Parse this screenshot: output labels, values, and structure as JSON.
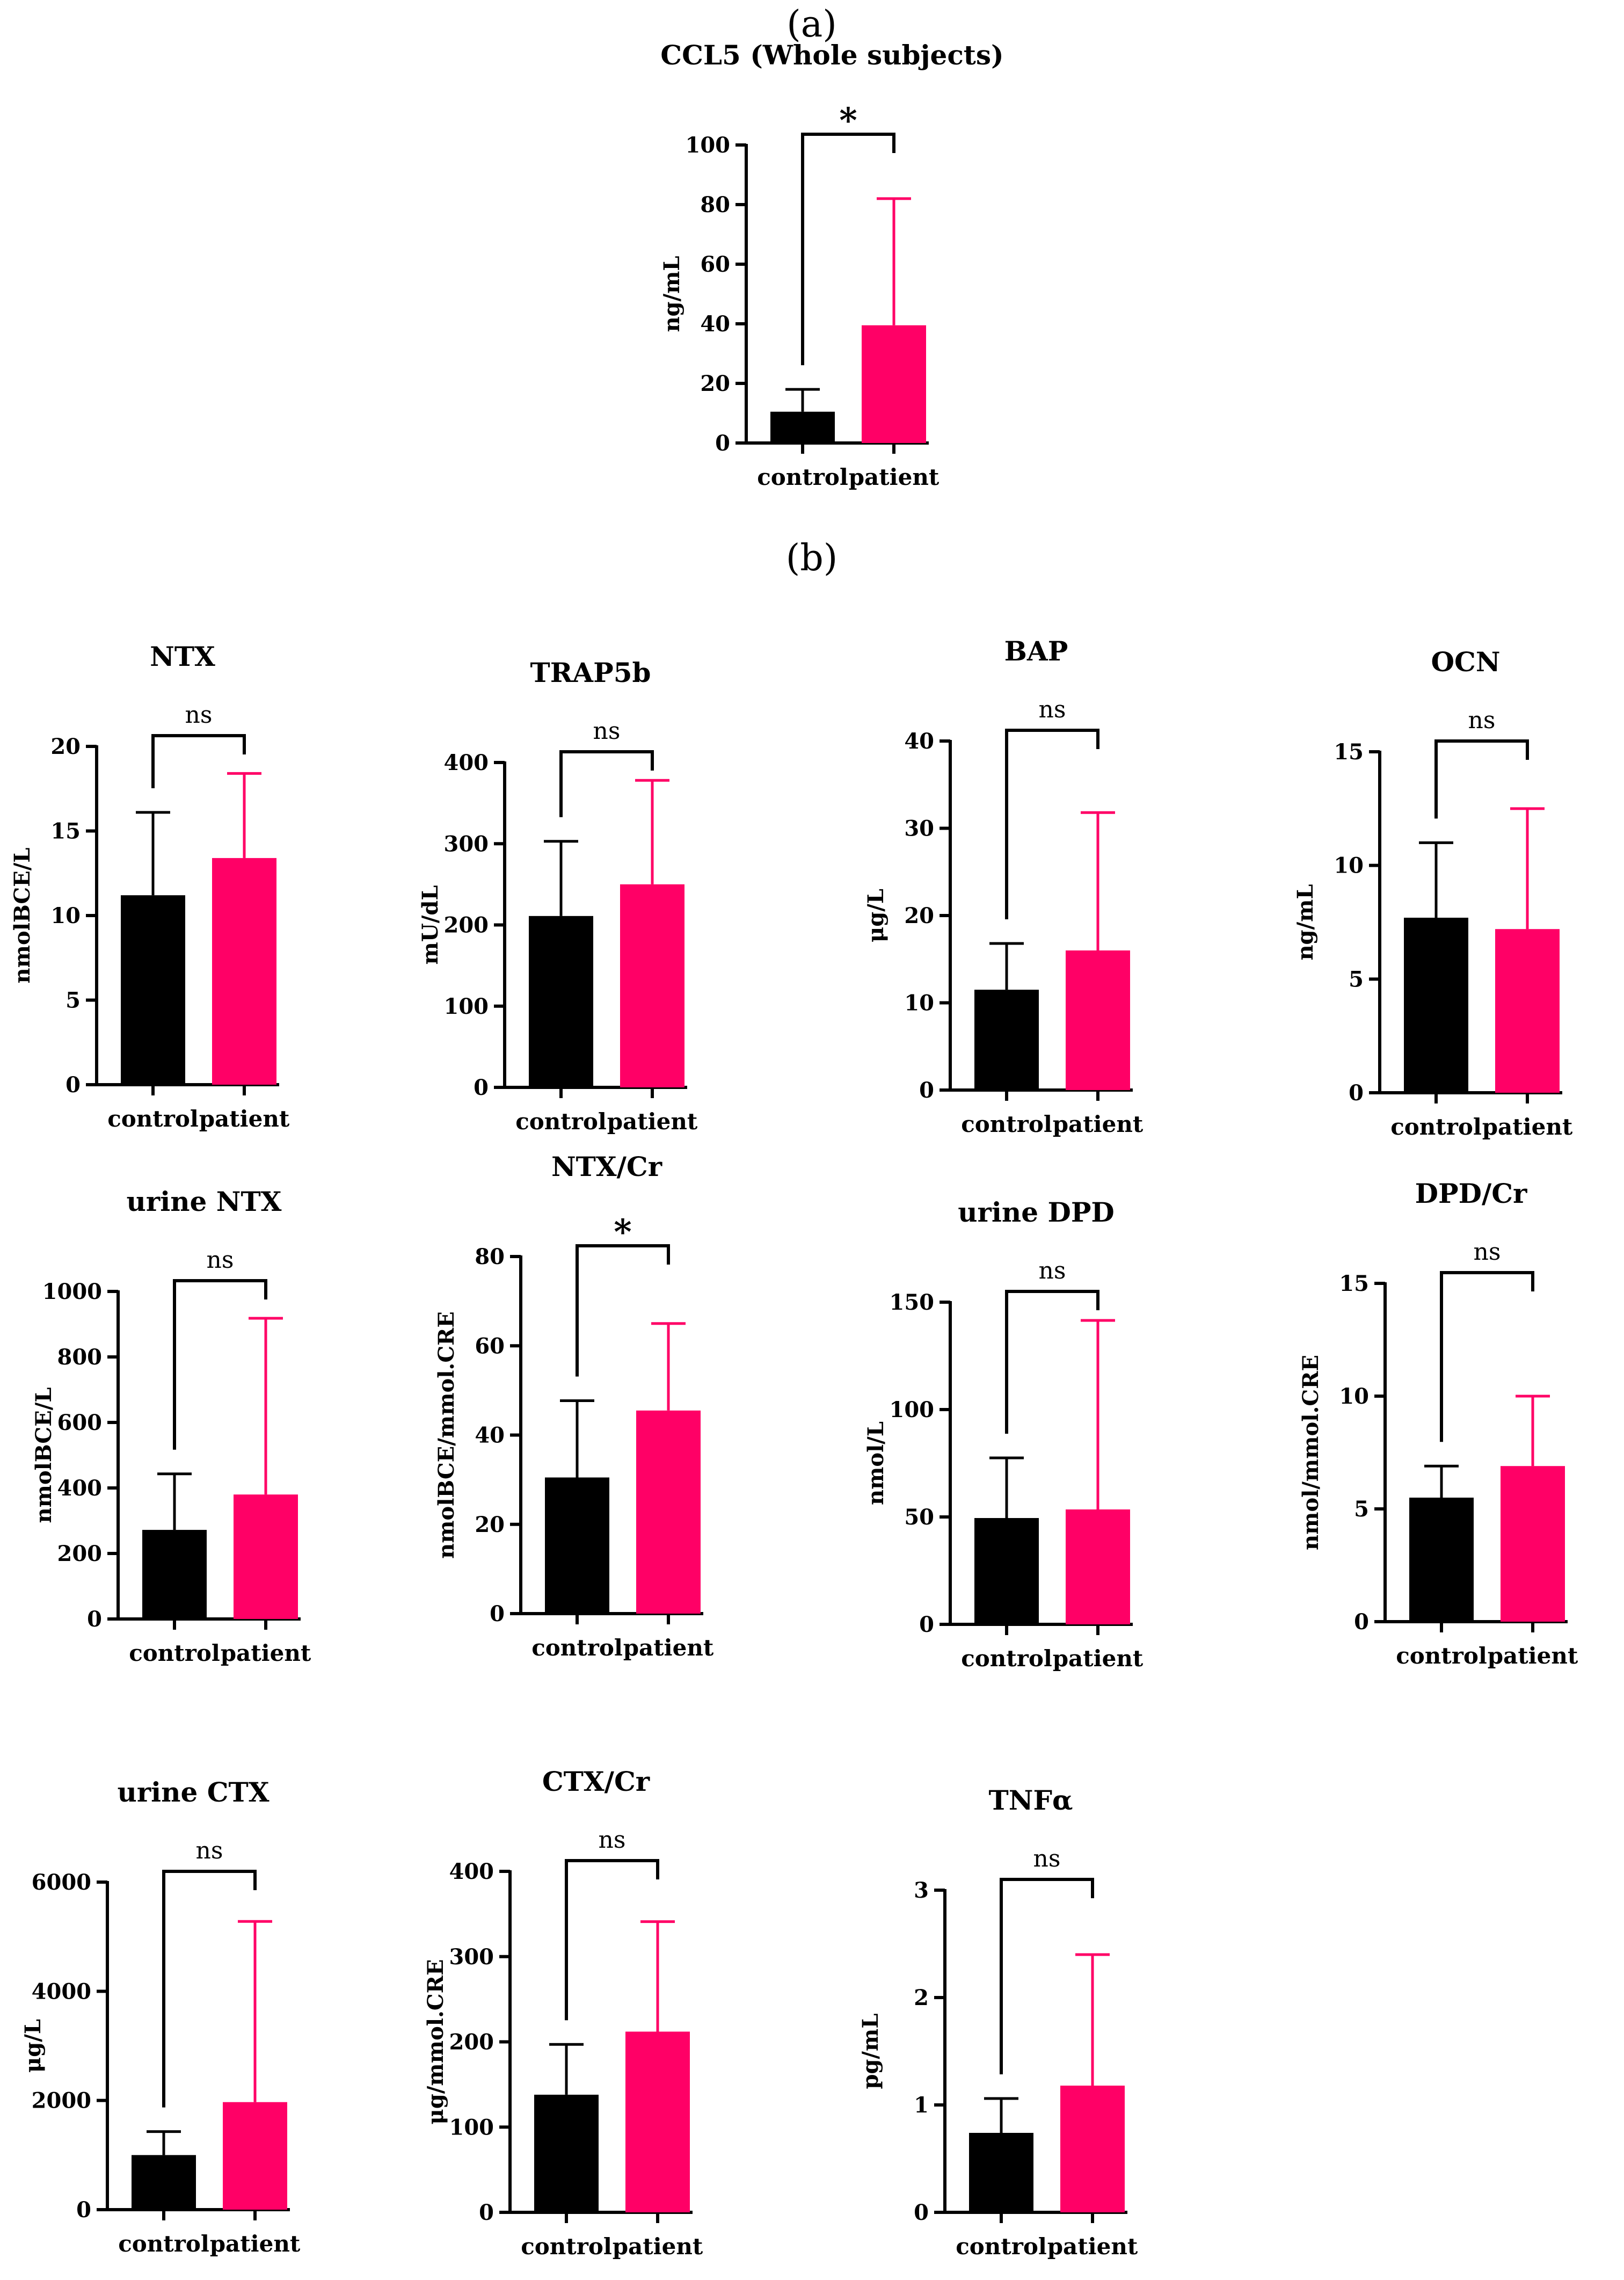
{
  "panels": {
    "a": "(a)",
    "b": "(b)"
  },
  "colors": {
    "control": "#000000",
    "patient": "#FF0066"
  },
  "chart_data": [
    {
      "type": "bar",
      "title": "CCL5 (Whole subjects)",
      "ylabel": "ng/mL",
      "categories": [
        "control",
        "patient"
      ],
      "values": [
        10.5,
        39.5
      ],
      "error": [
        18,
        82
      ],
      "ylim": [
        0,
        100
      ],
      "yticks": [
        0,
        20,
        40,
        60,
        80,
        100
      ],
      "significance": "*"
    },
    {
      "type": "bar",
      "title": "NTX",
      "ylabel": "nmolBCE/L",
      "categories": [
        "control",
        "patient"
      ],
      "values": [
        11.2,
        13.4
      ],
      "error": [
        16.1,
        18.4
      ],
      "ylim": [
        0,
        20
      ],
      "yticks": [
        0,
        5,
        10,
        15,
        20
      ],
      "significance": "ns"
    },
    {
      "type": "bar",
      "title": "TRAP5b",
      "ylabel": "mU/dL",
      "categories": [
        "control",
        "patient"
      ],
      "values": [
        211,
        250
      ],
      "error": [
        303,
        378
      ],
      "ylim": [
        0,
        400
      ],
      "yticks": [
        0,
        100,
        200,
        300,
        400
      ],
      "significance": "ns"
    },
    {
      "type": "bar",
      "title": "BAP",
      "ylabel": "μg/L",
      "categories": [
        "control",
        "patient"
      ],
      "values": [
        11.5,
        16
      ],
      "error": [
        16.8,
        31.8
      ],
      "ylim": [
        0,
        40
      ],
      "yticks": [
        0,
        10,
        20,
        30,
        40
      ],
      "significance": "ns"
    },
    {
      "type": "bar",
      "title": "OCN",
      "ylabel": "ng/mL",
      "categories": [
        "control",
        "patient"
      ],
      "values": [
        7.7,
        7.2
      ],
      "error": [
        11,
        12.5
      ],
      "ylim": [
        0,
        15
      ],
      "yticks": [
        0,
        5,
        10,
        15
      ],
      "significance": "ns"
    },
    {
      "type": "bar",
      "title": "urine NTX",
      "ylabel": "nmolBCE/L",
      "categories": [
        "control",
        "patient"
      ],
      "values": [
        272,
        380
      ],
      "error": [
        443,
        918
      ],
      "ylim": [
        0,
        1000
      ],
      "yticks": [
        0,
        200,
        400,
        600,
        800,
        1000
      ],
      "significance": "ns"
    },
    {
      "type": "bar",
      "title": "NTX/Cr",
      "ylabel": "nmolBCE/mmol.CRE",
      "categories": [
        "control",
        "patient"
      ],
      "values": [
        30.5,
        45.5
      ],
      "error": [
        47.7,
        65
      ],
      "ylim": [
        0,
        80
      ],
      "yticks": [
        0,
        20,
        40,
        60,
        80
      ],
      "significance": "*"
    },
    {
      "type": "bar",
      "title": "urine DPD",
      "ylabel": "nmol/L",
      "categories": [
        "control",
        "patient"
      ],
      "values": [
        49.5,
        53.5
      ],
      "error": [
        77.5,
        141.5
      ],
      "ylim": [
        0,
        150
      ],
      "yticks": [
        0,
        50,
        100,
        150
      ],
      "significance": "ns"
    },
    {
      "type": "bar",
      "title": "DPD/Cr",
      "ylabel": "nmol/mmol.CRE",
      "categories": [
        "control",
        "patient"
      ],
      "values": [
        5.5,
        6.9
      ],
      "error": [
        6.9,
        10
      ],
      "ylim": [
        0,
        15
      ],
      "yticks": [
        0,
        5,
        10,
        15
      ],
      "significance": "ns"
    },
    {
      "type": "bar",
      "title": "urine CTX",
      "ylabel": "μg/L",
      "categories": [
        "control",
        "patient"
      ],
      "values": [
        1000,
        1970
      ],
      "error": [
        1430,
        5280
      ],
      "ylim": [
        0,
        6000
      ],
      "yticks": [
        0,
        2000,
        4000,
        6000
      ],
      "significance": "ns"
    },
    {
      "type": "bar",
      "title": "CTX/Cr",
      "ylabel": "μg/mmol.CRE",
      "categories": [
        "control",
        "patient"
      ],
      "values": [
        138,
        212
      ],
      "error": [
        197,
        341
      ],
      "ylim": [
        0,
        400
      ],
      "yticks": [
        0,
        100,
        200,
        300,
        400
      ],
      "significance": "ns"
    },
    {
      "type": "bar",
      "title": "TNFα",
      "ylabel": "pg/mL",
      "categories": [
        "control",
        "patient"
      ],
      "values": [
        0.74,
        1.18
      ],
      "error": [
        1.06,
        2.4
      ],
      "ylim": [
        0,
        3
      ],
      "yticks": [
        0,
        1,
        2,
        3
      ],
      "significance": "ns"
    }
  ]
}
